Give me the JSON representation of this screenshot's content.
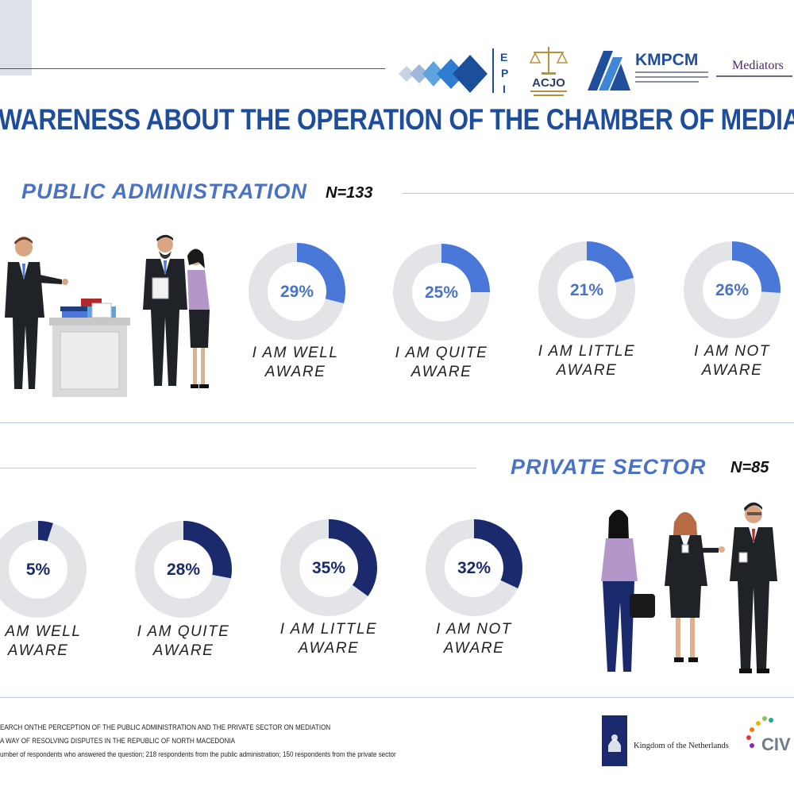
{
  "header": {
    "title": "WARENESS ABOUT THE OPERATION OF THE CHAMBER OF MEDIATO",
    "logos": {
      "epi": "E P I",
      "acjo": "ACJO",
      "kmpcm": "KMPCM",
      "mediators": "Mediators"
    }
  },
  "sections": [
    {
      "title": "PUBLIC ADMINISTRATION",
      "n": "N=133"
    },
    {
      "title": "PRIVATE SECTOR",
      "n": "N=85"
    }
  ],
  "chart_data": [
    {
      "type": "pie",
      "style": "donut",
      "title": "PUBLIC ADMINISTRATION",
      "n": "N=133",
      "categories": [
        "I AM WELL AWARE",
        "I AM QUITE AWARE",
        "I AM LITTLE AWARE",
        "I AM NOT AWARE"
      ],
      "labels": [
        [
          "I AM WELL",
          "AWARE"
        ],
        [
          "I AM QUITE",
          "AWARE"
        ],
        [
          "I AM LITTLE",
          "AWARE"
        ],
        [
          "I AM NOT",
          "AWARE"
        ]
      ],
      "values": [
        29,
        25,
        21,
        26
      ],
      "value_labels": [
        "29%",
        "25%",
        "21%",
        "26%"
      ],
      "colors": {
        "fill": "#4a78d8",
        "track": "#e3e4e8",
        "text": "#4a72c5"
      }
    },
    {
      "type": "pie",
      "style": "donut",
      "title": "PRIVATE SECTOR",
      "n": "N=85",
      "categories": [
        "I AM WELL AWARE",
        "I AM QUITE AWARE",
        "I AM LITTLE AWARE",
        "I AM NOT AWARE"
      ],
      "labels": [
        [
          "I AM WELL",
          "AWARE"
        ],
        [
          "I AM QUITE",
          "AWARE"
        ],
        [
          "I AM LITTLE",
          "AWARE"
        ],
        [
          "I AM NOT",
          "AWARE"
        ]
      ],
      "values": [
        5,
        28,
        35,
        32
      ],
      "value_labels": [
        "5%",
        "28%",
        "35%",
        "32%"
      ],
      "colors": {
        "fill": "#1a2a6c",
        "track": "#e3e4e8",
        "text": "#1a2a6c"
      }
    }
  ],
  "footer": {
    "notes": [
      "EARCH ONTHE PERCEPTION OF THE PUBLIC ADMINISTRATION AND THE PRIVATE SECTOR ON MEDIATION",
      "A WAY OF RESOLVING DISPUTES IN THE REPUBLIC OF NORTH MACEDONIA",
      "umber of respondents who answered the question; 218 respondents from the public administration; 150 respondents from the private sector"
    ],
    "netherlands": "Kingdom of the Netherlands",
    "civica": "CIV"
  }
}
